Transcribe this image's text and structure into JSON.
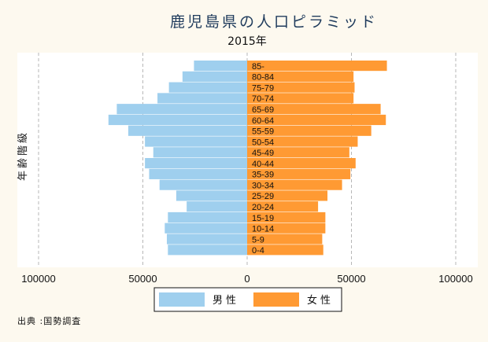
{
  "chart_data": {
    "type": "bar",
    "orientation": "horizontal",
    "title": "鹿児島県の人口ピラミッド",
    "subtitle": "2015年",
    "ylabel": "年齢階級",
    "categories": [
      "0-4",
      "5-9",
      "10-14",
      "15-19",
      "20-24",
      "25-29",
      "30-34",
      "35-39",
      "40-44",
      "45-49",
      "50-54",
      "55-59",
      "60-64",
      "65-69",
      "70-74",
      "75-79",
      "80-84",
      "85-"
    ],
    "series": [
      {
        "name": "男性",
        "color": "#9fcfee",
        "side": "left",
        "values": [
          38000,
          38500,
          39500,
          38000,
          29000,
          34000,
          42000,
          47000,
          49000,
          45000,
          49000,
          57000,
          66500,
          62500,
          43000,
          37500,
          31000,
          25500
        ]
      },
      {
        "name": "女性",
        "color": "#ff9a33",
        "side": "right",
        "values": [
          36500,
          36000,
          37500,
          37500,
          34000,
          38500,
          45500,
          49500,
          52000,
          49000,
          53000,
          59500,
          66500,
          64000,
          51000,
          51500,
          51000,
          67000
        ]
      }
    ],
    "xlim": [
      -100000,
      100000
    ],
    "xticks": [
      -100000,
      -50000,
      0,
      50000,
      100000
    ],
    "xtick_labels": [
      "100000",
      "50000",
      "0",
      "50000",
      "100000"
    ],
    "grid": "vertical-dashed",
    "legend_position": "bottom"
  },
  "source_note": "出典 :国勢調査"
}
